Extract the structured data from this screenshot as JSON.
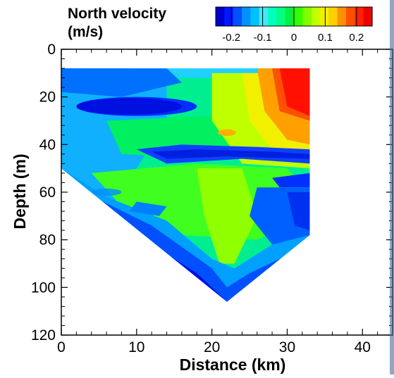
{
  "chart_data": {
    "type": "heatmap",
    "title": "North velocity\n(m/s)",
    "title_line1": "North velocity",
    "title_line2": "(m/s)",
    "xlabel": "Distance (km)",
    "ylabel": "Depth (m)",
    "xlim": [
      0,
      44
    ],
    "ylim": [
      120,
      0
    ],
    "x_ticks": [
      "0",
      "10",
      "20",
      "30",
      "40"
    ],
    "y_ticks": [
      "0",
      "20",
      "40",
      "60",
      "80",
      "100",
      "120"
    ],
    "colorbar": {
      "vmin": -0.25,
      "vmax": 0.25,
      "ticks": [
        "-0.2",
        "-0.1",
        "0",
        "0.1",
        "0.2"
      ],
      "tick_values": [
        -0.2,
        -0.1,
        0,
        0.1,
        0.2
      ],
      "colors": [
        "#0000cc",
        "#0018ff",
        "#0050ff",
        "#0090ff",
        "#00c0ff",
        "#40e8ff",
        "#00ffc0",
        "#00ff80",
        "#00f040",
        "#30ff00",
        "#80ff00",
        "#c0ff00",
        "#f0f000",
        "#ffd000",
        "#ff9000",
        "#ff5000",
        "#ff2000",
        "#ee0000"
      ]
    },
    "section": {
      "x_range": [
        0,
        33
      ],
      "top_depth": 8,
      "boundary": [
        [
          0,
          8
        ],
        [
          33,
          8
        ],
        [
          33,
          78
        ],
        [
          22,
          106
        ],
        [
          0,
          50
        ]
      ]
    },
    "grid": false
  }
}
